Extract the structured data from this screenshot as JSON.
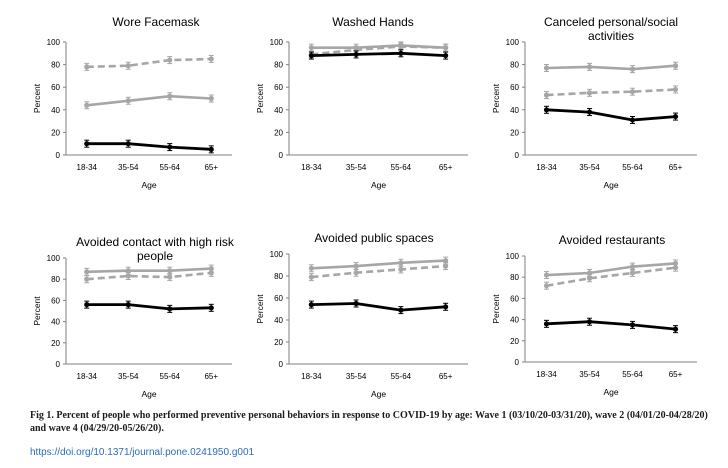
{
  "caption": "Fig 1. Percent of people who performed preventive personal behaviors in response to COVID-19 by age: Wave 1 (03/10/20-03/31/20), wave 2 (04/01/20-04/28/20) and wave 4 (04/29/20-05/26/20).",
  "doi": "https://doi.org/10.1371/journal.pone.0241950.g001",
  "colors": {
    "black": "#000000",
    "gray": "#a6a6a6",
    "dashed_gray": "#a6a6a6"
  },
  "chart_data": [
    {
      "type": "line",
      "title": [
        "Wore Facemask"
      ],
      "xlabel": "Age",
      "ylabel": "Percent",
      "categories": [
        "18-34",
        "35-54",
        "55-64",
        "65+"
      ],
      "ylim": [
        0,
        100
      ],
      "yticks": [
        0,
        20,
        40,
        60,
        80,
        100
      ],
      "series": [
        {
          "style": "dashed-gray",
          "values": [
            78,
            79,
            84,
            85
          ]
        },
        {
          "style": "solid-gray",
          "values": [
            44,
            48,
            52,
            50
          ]
        },
        {
          "style": "solid-black",
          "values": [
            10,
            10,
            7,
            5
          ]
        }
      ]
    },
    {
      "type": "line",
      "title": [
        "Washed Hands"
      ],
      "xlabel": "Age",
      "ylabel": "Percent",
      "categories": [
        "18-34",
        "35-54",
        "55-64",
        "65+"
      ],
      "ylim": [
        0,
        100
      ],
      "yticks": [
        0,
        20,
        40,
        60,
        80,
        100
      ],
      "series": [
        {
          "style": "dashed-gray",
          "values": [
            89,
            93,
            96,
            95
          ]
        },
        {
          "style": "solid-gray",
          "values": [
            95,
            95,
            97,
            95
          ]
        },
        {
          "style": "solid-black",
          "values": [
            88,
            89,
            90,
            88
          ]
        }
      ]
    },
    {
      "type": "line",
      "title": [
        "Canceled personal/social",
        "activities"
      ],
      "xlabel": "Age",
      "ylabel": "Percent",
      "categories": [
        "18-34",
        "35-54",
        "55-64",
        "65+"
      ],
      "ylim": [
        0,
        100
      ],
      "yticks": [
        0,
        20,
        40,
        60,
        80,
        100
      ],
      "series": [
        {
          "style": "dashed-gray",
          "values": [
            53,
            55,
            56,
            58
          ]
        },
        {
          "style": "solid-gray",
          "values": [
            77,
            78,
            76,
            79
          ]
        },
        {
          "style": "solid-black",
          "values": [
            40,
            38,
            31,
            34
          ]
        }
      ]
    },
    {
      "type": "line",
      "title": [
        "Avoided contact with high risk",
        "people"
      ],
      "xlabel": "Age",
      "ylabel": "Percent",
      "categories": [
        "18-34",
        "35-54",
        "55-64",
        "65+"
      ],
      "ylim": [
        0,
        100
      ],
      "yticks": [
        0,
        20,
        40,
        60,
        80,
        100
      ],
      "series": [
        {
          "style": "dashed-gray",
          "values": [
            80,
            83,
            82,
            86
          ]
        },
        {
          "style": "solid-gray",
          "values": [
            87,
            88,
            88,
            90
          ]
        },
        {
          "style": "solid-black",
          "values": [
            56,
            56,
            52,
            53
          ]
        }
      ]
    },
    {
      "type": "line",
      "title": [
        "Avoided public spaces"
      ],
      "xlabel": "Age",
      "ylabel": "Percent",
      "categories": [
        "18-34",
        "35-54",
        "55-64",
        "65+"
      ],
      "ylim": [
        0,
        100
      ],
      "yticks": [
        0,
        20,
        40,
        60,
        80,
        100
      ],
      "series": [
        {
          "style": "dashed-gray",
          "values": [
            79,
            83,
            86,
            89
          ]
        },
        {
          "style": "solid-gray",
          "values": [
            87,
            89,
            92,
            94
          ]
        },
        {
          "style": "solid-black",
          "values": [
            54,
            55,
            49,
            52
          ]
        }
      ]
    },
    {
      "type": "line",
      "title": [
        "Avoided restaurants"
      ],
      "xlabel": "Age",
      "ylabel": "Percent",
      "categories": [
        "18-34",
        "35-54",
        "55-64",
        "65+"
      ],
      "ylim": [
        0,
        100
      ],
      "yticks": [
        0,
        20,
        40,
        60,
        80,
        100
      ],
      "series": [
        {
          "style": "dashed-gray",
          "values": [
            72,
            79,
            84,
            89
          ]
        },
        {
          "style": "solid-gray",
          "values": [
            82,
            84,
            90,
            93
          ]
        },
        {
          "style": "solid-black",
          "values": [
            36,
            38,
            35,
            31
          ]
        }
      ]
    }
  ]
}
